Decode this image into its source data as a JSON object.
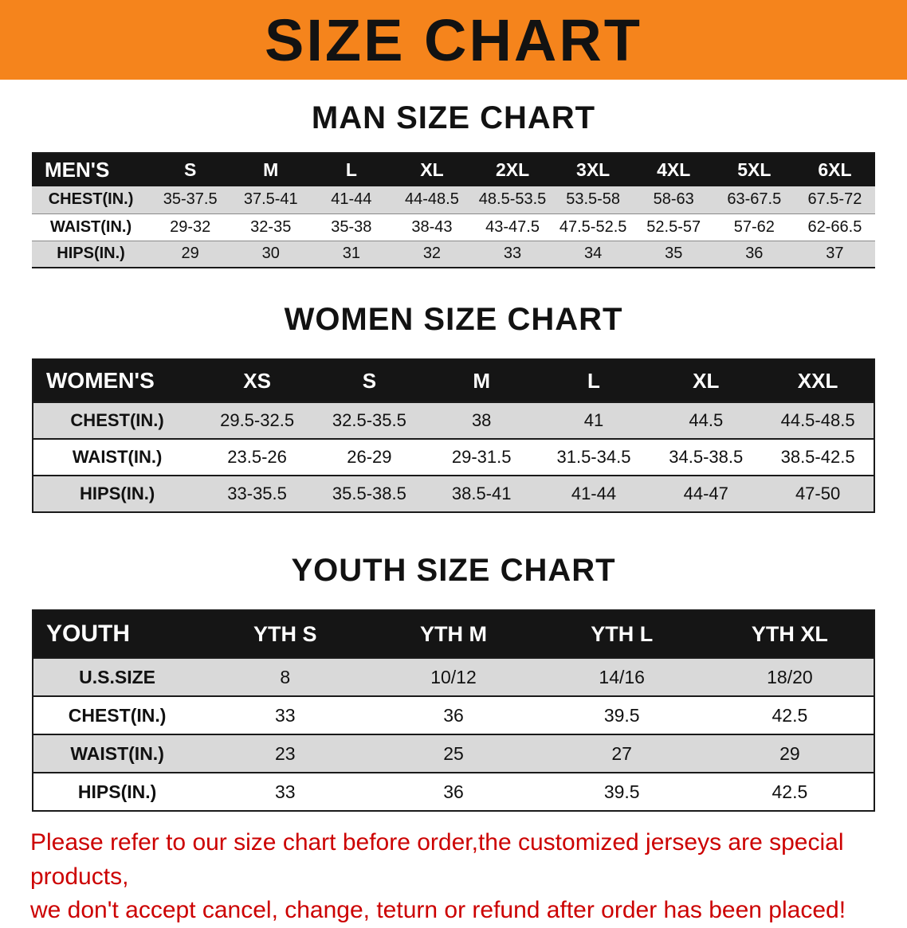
{
  "banner": {
    "title": "SIZE CHART",
    "bg_color": "#F5841C"
  },
  "sections": [
    {
      "id": "men",
      "title": "MAN SIZE CHART",
      "table": {
        "label_col_width": "14%",
        "header": [
          "MEN'S",
          "S",
          "M",
          "L",
          "XL",
          "2XL",
          "3XL",
          "4XL",
          "5XL",
          "6XL"
        ],
        "rows": [
          [
            "CHEST(IN.)",
            "35-37.5",
            "37.5-41",
            "41-44",
            "44-48.5",
            "48.5-53.5",
            "53.5-58",
            "58-63",
            "63-67.5",
            "67.5-72"
          ],
          [
            "WAIST(IN.)",
            "29-32",
            "32-35",
            "35-38",
            "38-43",
            "43-47.5",
            "47.5-52.5",
            "52.5-57",
            "57-62",
            "62-66.5"
          ],
          [
            "HIPS(IN.)",
            "29",
            "30",
            "31",
            "32",
            "33",
            "34",
            "35",
            "36",
            "37"
          ]
        ]
      }
    },
    {
      "id": "women",
      "title": "WOMEN SIZE CHART",
      "table": {
        "label_col_width": "20%",
        "header": [
          "WOMEN'S",
          "XS",
          "S",
          "M",
          "L",
          "XL",
          "XXL"
        ],
        "rows": [
          [
            "CHEST(IN.)",
            "29.5-32.5",
            "32.5-35.5",
            "38",
            "41",
            "44.5",
            "44.5-48.5"
          ],
          [
            "WAIST(IN.)",
            "23.5-26",
            "26-29",
            "29-31.5",
            "31.5-34.5",
            "34.5-38.5",
            "38.5-42.5"
          ],
          [
            "HIPS(IN.)",
            "33-35.5",
            "35.5-38.5",
            "38.5-41",
            "41-44",
            "44-47",
            "47-50"
          ]
        ]
      }
    },
    {
      "id": "youth",
      "title": "YOUTH SIZE CHART",
      "table": {
        "label_col_width": "20%",
        "header": [
          "YOUTH",
          "YTH S",
          "YTH M",
          "YTH L",
          "YTH XL"
        ],
        "rows": [
          [
            "U.S.SIZE",
            "8",
            "10/12",
            "14/16",
            "18/20"
          ],
          [
            "CHEST(IN.)",
            "33",
            "36",
            "39.5",
            "42.5"
          ],
          [
            "WAIST(IN.)",
            "23",
            "25",
            "27",
            "29"
          ],
          [
            "HIPS(IN.)",
            "33",
            "36",
            "39.5",
            "42.5"
          ]
        ]
      }
    }
  ],
  "footer": {
    "text_color": "#CC0000",
    "lines": [
      "Please refer to our size chart before order,the customized jerseys are special products,",
      "we don't accept cancel, change, teturn or refund after order has been placed!"
    ]
  }
}
